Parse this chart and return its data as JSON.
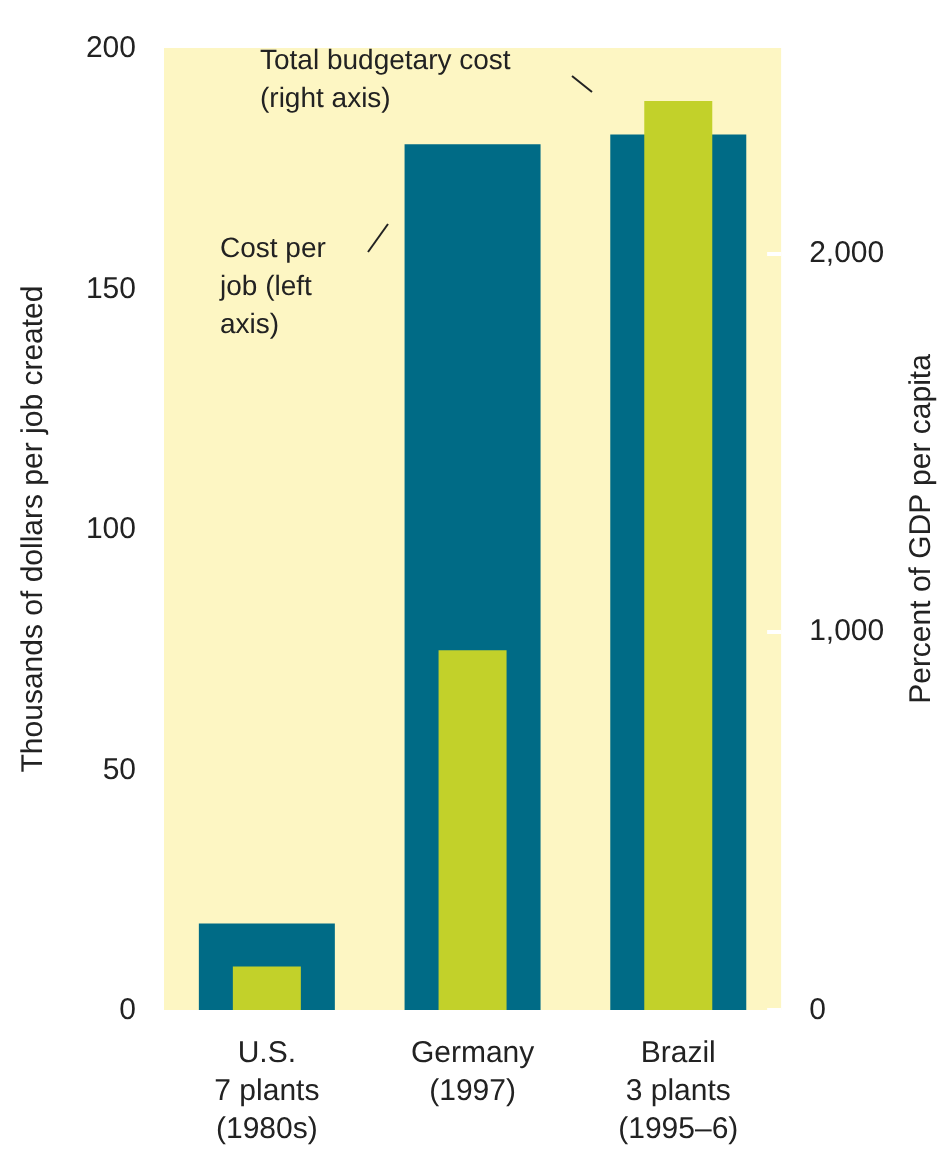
{
  "chart_data": {
    "type": "bar",
    "ylabel": "Thousands of dollars per job created",
    "y2label": "Percent of GDP per capita",
    "categories": [
      "U.S.\n7 plants\n(1980s)",
      "Germany\n(1997)",
      "Brazil\n3 plants\n(1995–6)"
    ],
    "series": [
      {
        "color": "#006b86",
        "values": [
          18,
          180,
          182
        ]
      },
      {
        "color": "#c2d12a",
        "values": [
          115,
          950,
          2400
        ],
        "axis": "y2"
      }
    ],
    "ylim": [
      0,
      200
    ],
    "yticks": [
      0,
      50,
      100,
      150,
      200
    ],
    "y2lim": [
      0,
      2540
    ],
    "y2ticks": [
      0,
      {
        "value": 1000,
        "label": "1,000"
      },
      {
        "value": 2000,
        "label": "2,000"
      }
    ],
    "annotations": [
      "Total budgetary cost\n(right axis)",
      "Cost per\njob (left\naxis)"
    ]
  }
}
